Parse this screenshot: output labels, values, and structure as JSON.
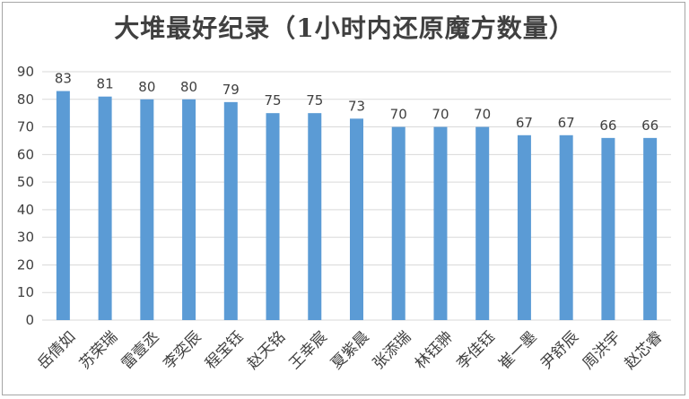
{
  "chart_data": {
    "type": "bar",
    "title": "大堆最好纪录（1小时内还原魔方数量）",
    "categories": [
      "岳倩如",
      "苏荣瑞",
      "雷壹丞",
      "李奕辰",
      "程宝钰",
      "赵天铭",
      "王幸宸",
      "夏紫晨",
      "张添瑞",
      "林钰翀",
      "李佳钰",
      "崔一墨",
      "尹舒辰",
      "周洪宇",
      "赵芯睿"
    ],
    "values": [
      83,
      81,
      80,
      80,
      79,
      75,
      75,
      73,
      70,
      70,
      70,
      67,
      67,
      66,
      66
    ],
    "ylim": [
      0,
      90
    ],
    "yticks": [
      0,
      10,
      20,
      30,
      40,
      50,
      60,
      70,
      80,
      90
    ],
    "grid": true,
    "bar_color": "#5b9bd5",
    "grid_color": "#d9d9d9",
    "text_color": "#404040"
  }
}
